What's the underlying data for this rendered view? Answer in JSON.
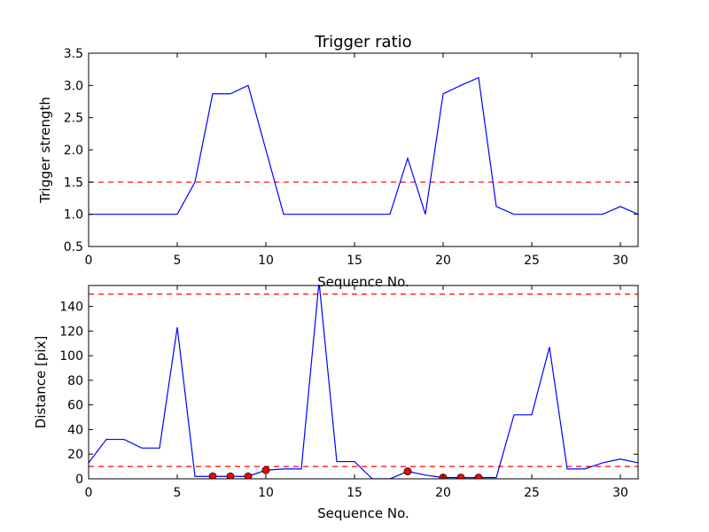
{
  "chart_data": [
    {
      "type": "line",
      "title": "Trigger ratio",
      "xlabel": "Sequence No.",
      "ylabel": "Trigger strength",
      "xlim": [
        0,
        31
      ],
      "ylim": [
        0.5,
        3.5
      ],
      "xticks": [
        0,
        5,
        10,
        15,
        20,
        25,
        30
      ],
      "yticks": [
        0.5,
        1.0,
        1.5,
        2.0,
        2.5,
        3.0,
        3.5
      ],
      "ytick_decimals": 1,
      "grid": false,
      "series": [
        {
          "color": "#0000ff",
          "x": [
            0,
            1,
            2,
            3,
            4,
            5,
            6,
            7,
            8,
            9,
            10,
            11,
            12,
            13,
            14,
            15,
            16,
            17,
            18,
            19,
            20,
            21,
            22,
            23,
            24,
            25,
            26,
            27,
            28,
            29,
            30,
            31
          ],
          "y": [
            1.0,
            1.0,
            1.0,
            1.0,
            1.0,
            1.0,
            1.5,
            2.87,
            2.87,
            3.0,
            2.0,
            1.0,
            1.0,
            1.0,
            1.0,
            1.0,
            1.0,
            1.0,
            1.87,
            1.0,
            2.87,
            3.0,
            3.12,
            1.12,
            1.0,
            1.0,
            1.0,
            1.0,
            1.0,
            1.0,
            1.12,
            1.0
          ]
        }
      ],
      "hlines": [
        {
          "y": 1.5,
          "color": "#ff0000",
          "style": "dashed"
        }
      ]
    },
    {
      "type": "line",
      "title": "",
      "xlabel": "Sequence No.",
      "ylabel": "Distance [pix]",
      "xlim": [
        0,
        31
      ],
      "ylim": [
        0,
        157
      ],
      "xticks": [
        0,
        5,
        10,
        15,
        20,
        25,
        30
      ],
      "yticks": [
        0,
        20,
        40,
        60,
        80,
        100,
        120,
        140
      ],
      "ytick_decimals": 0,
      "grid": false,
      "series": [
        {
          "color": "#0000ff",
          "x": [
            0,
            1,
            2,
            3,
            4,
            5,
            6,
            7,
            8,
            9,
            10,
            11,
            12,
            13,
            14,
            15,
            16,
            17,
            18,
            19,
            20,
            21,
            22,
            23,
            24,
            25,
            26,
            27,
            28,
            29,
            30,
            31
          ],
          "y": [
            13,
            32,
            32,
            25,
            25,
            123,
            2,
            2,
            2,
            2,
            7,
            8,
            8,
            160,
            14,
            14,
            0,
            0,
            6,
            3,
            1,
            1,
            1,
            1,
            52,
            52,
            107,
            8,
            8,
            13,
            16,
            13
          ]
        }
      ],
      "markers": {
        "color": "#ff0000",
        "x": [
          7,
          8,
          9,
          10,
          18,
          20,
          21,
          22
        ],
        "y": [
          2,
          2,
          2,
          7,
          6,
          1,
          1,
          1
        ]
      },
      "hlines": [
        {
          "y": 150,
          "color": "#ff0000",
          "style": "dashed"
        },
        {
          "y": 10,
          "color": "#ff0000",
          "style": "dashed"
        }
      ]
    }
  ]
}
